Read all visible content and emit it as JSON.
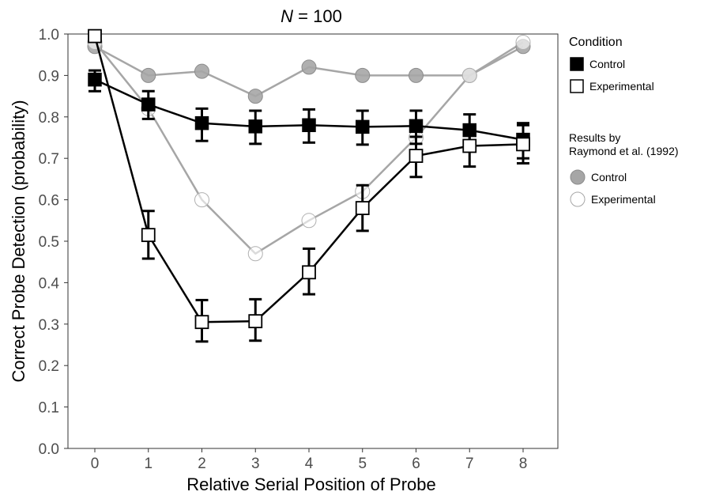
{
  "chart_data": {
    "type": "line",
    "title_italic": "N",
    "title_rest": " = 100",
    "xlabel": "Relative Serial Position of Probe",
    "ylabel": "Correct Probe Detection (probability)",
    "x": [
      0,
      1,
      2,
      3,
      4,
      5,
      6,
      7,
      8
    ],
    "xlim": [
      -0.5,
      8.5
    ],
    "ylim": [
      0,
      1.0
    ],
    "x_ticks": [
      "0",
      "1",
      "2",
      "3",
      "4",
      "5",
      "6",
      "7",
      "8"
    ],
    "y_ticks": [
      "0.0",
      "0.1",
      "0.2",
      "0.3",
      "0.4",
      "0.5",
      "0.6",
      "0.7",
      "0.8",
      "0.9",
      "1.0"
    ],
    "grid": false,
    "legend_position": "right",
    "legend": {
      "title": "Condition",
      "items": [
        "Control",
        "Experimental"
      ],
      "reference_title_line1": "Results by",
      "reference_title_line2": "Raymond et al. (1992)",
      "reference_items": [
        "Control",
        "Experimental"
      ]
    },
    "series": [
      {
        "name": "Control",
        "group": "Condition",
        "marker": "filled-square",
        "color": "#000000",
        "values": [
          0.89,
          0.83,
          0.785,
          0.777,
          0.78,
          0.776,
          0.778,
          0.768,
          0.745
        ],
        "error_low": [
          0.862,
          0.795,
          0.742,
          0.735,
          0.738,
          0.733,
          0.735,
          0.73,
          0.7
        ],
        "error_high": [
          0.912,
          0.862,
          0.82,
          0.815,
          0.818,
          0.815,
          0.815,
          0.806,
          0.785
        ]
      },
      {
        "name": "Experimental",
        "group": "Condition",
        "marker": "open-square",
        "color": "#000000",
        "values": [
          0.995,
          0.515,
          0.305,
          0.307,
          0.425,
          0.58,
          0.706,
          0.73,
          0.734
        ],
        "error_low": [
          0.995,
          0.458,
          0.258,
          0.26,
          0.372,
          0.525,
          0.655,
          0.68,
          0.688
        ],
        "error_high": [
          0.995,
          0.573,
          0.358,
          0.36,
          0.482,
          0.635,
          0.752,
          0.78,
          0.78
        ]
      },
      {
        "name": "Control",
        "group": "Results by Raymond et al. (1992)",
        "marker": "filled-circle",
        "color": "#a6a6a6",
        "values": [
          0.97,
          0.9,
          0.91,
          0.85,
          0.92,
          0.9,
          0.9,
          0.9,
          0.97
        ]
      },
      {
        "name": "Experimental",
        "group": "Results by Raymond et al. (1992)",
        "marker": "open-circle",
        "color": "#a6a6a6",
        "values": [
          0.98,
          0.82,
          0.6,
          0.47,
          0.55,
          0.62,
          0.75,
          0.9,
          0.98
        ]
      }
    ]
  }
}
